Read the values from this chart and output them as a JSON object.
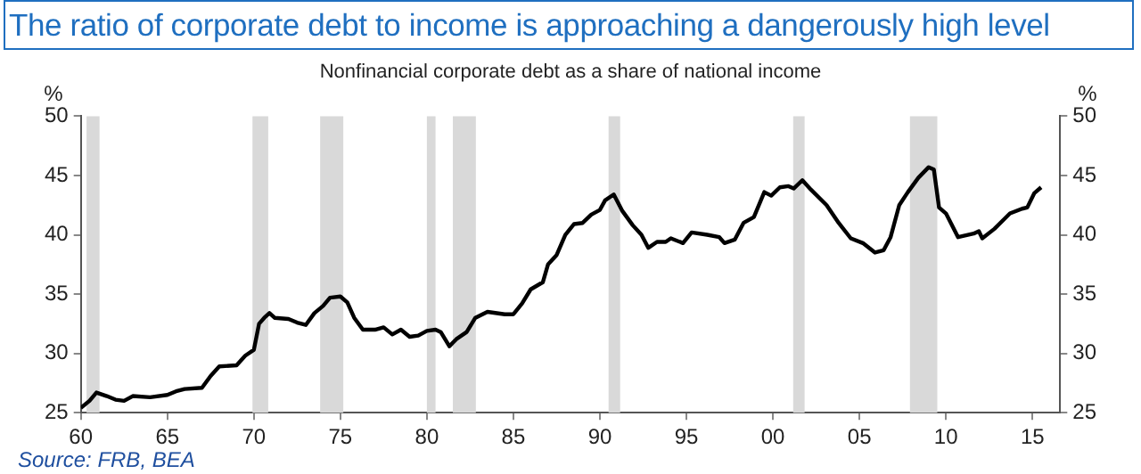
{
  "chart_data": {
    "type": "line",
    "title": "The ratio of corporate debt to income is approaching a dangerously high level",
    "subtitle": "Nonfinancial corporate debt as a share of national income",
    "ylabel": "%",
    "y2label": "%",
    "annotations": [
      "Source: FRB, BEA"
    ],
    "x": [
      1960,
      1960.5,
      1960.9,
      1961.5,
      1962,
      1962.5,
      1963,
      1964,
      1965,
      1965.5,
      1966,
      1967,
      1967.5,
      1968,
      1969,
      1969.5,
      1970,
      1970.3,
      1970.6,
      1970.9,
      1971.2,
      1972,
      1972.5,
      1973,
      1973.5,
      1974,
      1974.4,
      1975,
      1975.4,
      1975.8,
      1976.3,
      1977,
      1977.5,
      1978,
      1978.5,
      1979,
      1979.5,
      1980,
      1980.5,
      1980.8,
      1981.3,
      1981.7,
      1982.3,
      1982.8,
      1983.5,
      1984.5,
      1985,
      1985.5,
      1986,
      1986.7,
      1987,
      1987.5,
      1988,
      1988.5,
      1989,
      1989.5,
      1990,
      1990.3,
      1990.8,
      1991.3,
      1991.9,
      1992.4,
      1992.8,
      1993.3,
      1993.8,
      1994.1,
      1994.8,
      1995.3,
      1996.2,
      1996.9,
      1997.2,
      1997.8,
      1998.3,
      1998.9,
      1999.5,
      1999.9,
      2000.4,
      2000.9,
      2001.2,
      2001.7,
      2002.2,
      2003.1,
      2003.8,
      2004.5,
      2005.2,
      2005.9,
      2006.4,
      2006.8,
      2007.3,
      2007.8,
      2008.4,
      2009,
      2009.3,
      2009.6,
      2010,
      2010.7,
      2011.6,
      2011.9,
      2012.1,
      2012.8,
      2013.7,
      2014.4,
      2014.7,
      2015.1,
      2015.5
    ],
    "series": [
      {
        "color": "#000000",
        "values": [
          25.4,
          26,
          26.7,
          26.4,
          26.1,
          26,
          26.4,
          26.3,
          26.5,
          26.8,
          27,
          27.1,
          28.1,
          28.9,
          29,
          29.8,
          30.3,
          32.5,
          33,
          33.4,
          33,
          32.9,
          32.6,
          32.4,
          33.4,
          34,
          34.7,
          34.8,
          34.3,
          33,
          32,
          32,
          32.2,
          31.6,
          32,
          31.4,
          31.5,
          31.9,
          32,
          31.8,
          30.6,
          31.2,
          31.8,
          33,
          33.5,
          33.3,
          33.3,
          34.2,
          35.4,
          36,
          37.5,
          38.3,
          40,
          40.9,
          41,
          41.7,
          42.1,
          42.9,
          43.4,
          42,
          40.8,
          40,
          38.9,
          39.4,
          39.4,
          39.7,
          39.3,
          40.2,
          40,
          39.8,
          39.3,
          39.6,
          41,
          41.5,
          43.6,
          43.3,
          44,
          44.1,
          43.9,
          44.6,
          43.8,
          42.5,
          41,
          39.7,
          39.3,
          38.5,
          38.7,
          39.8,
          42.5,
          43.6,
          44.8,
          45.7,
          45.5,
          42.3,
          41.8,
          39.8,
          40.1,
          40.3,
          39.7,
          40.5,
          41.8,
          42.2,
          42.3,
          43.5,
          44
        ]
      }
    ],
    "xlim": [
      1960,
      2016.6
    ],
    "xticks": [
      {
        "value": 1960,
        "label": "60"
      },
      {
        "value": 1965,
        "label": "65"
      },
      {
        "value": 1970,
        "label": "70"
      },
      {
        "value": 1975,
        "label": "75"
      },
      {
        "value": 1980,
        "label": "80"
      },
      {
        "value": 1985,
        "label": "85"
      },
      {
        "value": 1990,
        "label": "90"
      },
      {
        "value": 1995,
        "label": "95"
      },
      {
        "value": 2000,
        "label": "00"
      },
      {
        "value": 2005,
        "label": "05"
      },
      {
        "value": 2010,
        "label": "10"
      },
      {
        "value": 2015,
        "label": "15"
      }
    ],
    "ylim": [
      25,
      50
    ],
    "yticks": [
      25,
      30,
      35,
      40,
      45,
      50
    ],
    "y2lim": [
      25,
      50
    ],
    "y2ticks": [
      25,
      30,
      35,
      40,
      45,
      50
    ],
    "bands": [
      {
        "axis": "x",
        "from": 1960.33,
        "to": 1961.08,
        "color": "#d9d9d9"
      },
      {
        "axis": "x",
        "from": 1969.92,
        "to": 1970.83,
        "color": "#d9d9d9"
      },
      {
        "axis": "x",
        "from": 1973.83,
        "to": 1975.17,
        "color": "#d9d9d9"
      },
      {
        "axis": "x",
        "from": 1980,
        "to": 1980.5,
        "color": "#d9d9d9"
      },
      {
        "axis": "x",
        "from": 1981.5,
        "to": 1982.83,
        "color": "#d9d9d9"
      },
      {
        "axis": "x",
        "from": 1990.5,
        "to": 1991.17,
        "color": "#d9d9d9"
      },
      {
        "axis": "x",
        "from": 2001.17,
        "to": 2001.83,
        "color": "#d9d9d9"
      },
      {
        "axis": "x",
        "from": 2007.92,
        "to": 2009.5,
        "color": "#d9d9d9"
      }
    ],
    "grid": false,
    "legend": false,
    "marker": "none",
    "line_style": "solid"
  }
}
